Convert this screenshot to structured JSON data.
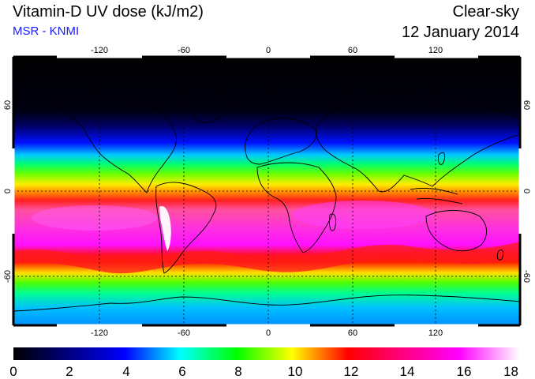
{
  "header": {
    "title": "Vitamin-D UV dose (kJ/m2)",
    "source": "MSR - KNMI",
    "mode": "Clear-sky",
    "date": "12 January 2014"
  },
  "map": {
    "lon_ticks": [
      "-120",
      "-60",
      "0",
      "60",
      "120"
    ],
    "lat_ticks": [
      "60",
      "0",
      "-60"
    ],
    "colors": {
      "night": "#000000",
      "low": "#0000ff",
      "mid": "#00ff00",
      "high": "#ff0000",
      "peak": "#ff00ff",
      "max": "#ffffff",
      "coast": "#000000",
      "grid": "#000000"
    }
  },
  "colorbar": {
    "labels": [
      "0",
      "2",
      "4",
      "6",
      "8",
      "10",
      "12",
      "14",
      "16",
      "18"
    ]
  }
}
